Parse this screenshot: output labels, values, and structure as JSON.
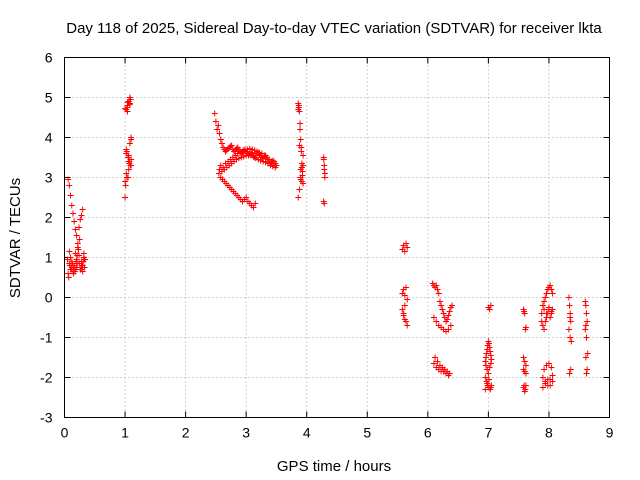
{
  "chart_data": {
    "type": "scatter",
    "title": "Day 118 of 2025, Sidereal Day-to-day VTEC variation (SDTVAR) for receiver lkta",
    "xlabel": "GPS time / hours",
    "ylabel": "SDTVAR / TECUs",
    "xlim": [
      0,
      9
    ],
    "ylim": [
      -3,
      6
    ],
    "xticks": [
      "0",
      "1",
      "2",
      "3",
      "4",
      "5",
      "6",
      "7",
      "8",
      "9"
    ],
    "yticks": [
      "-3",
      "-2",
      "-1",
      "0",
      "1",
      "2",
      "3",
      "4",
      "5",
      "6"
    ],
    "grid": true,
    "marker": "plus",
    "color": "#ff0000",
    "series": [
      {
        "name": "SDTVAR",
        "x": [
          0.05,
          0.06,
          0.07,
          0.08,
          0.09,
          0.1,
          0.11,
          0.12,
          0.13,
          0.14,
          0.15,
          0.16,
          0.17,
          0.18,
          0.19,
          0.2,
          0.21,
          0.22,
          0.23,
          0.24,
          0.25,
          0.26,
          0.27,
          0.28,
          0.29,
          0.3,
          0.31,
          0.32,
          0.33,
          0.34,
          0.06,
          0.08,
          0.1,
          0.12,
          0.14,
          0.16,
          0.18,
          0.2,
          0.22,
          0.24,
          0.26,
          0.28,
          0.3,
          0.32,
          0.33,
          0.1,
          0.15,
          0.2,
          0.25,
          0.3,
          0.08,
          0.12,
          0.18,
          0.22,
          0.28,
          1.0,
          1.01,
          1.02,
          1.03,
          1.04,
          1.05,
          1.06,
          1.07,
          1.08,
          1.09,
          1.1,
          1.0,
          1.02,
          1.04,
          1.06,
          1.08,
          1.1,
          1.02,
          1.04,
          1.06,
          1.08,
          1.1,
          1.0,
          1.02,
          1.04,
          1.06,
          1.08,
          1.1,
          1.05,
          1.09,
          1.03,
          1.07,
          2.48,
          2.5,
          2.52,
          2.54,
          2.56,
          2.58,
          2.6,
          2.62,
          2.64,
          2.66,
          2.68,
          2.7,
          2.72,
          2.74,
          2.76,
          2.78,
          2.8,
          2.82,
          2.84,
          2.86,
          2.88,
          2.9,
          2.92,
          2.94,
          2.96,
          2.98,
          3.0,
          3.02,
          3.04,
          3.06,
          3.08,
          3.1,
          3.12,
          3.14,
          3.16,
          3.18,
          3.2,
          3.22,
          3.24,
          3.26,
          3.28,
          3.3,
          3.32,
          3.34,
          3.36,
          3.38,
          3.4,
          3.42,
          3.44,
          3.46,
          3.48,
          3.5,
          2.56,
          2.6,
          2.64,
          2.68,
          2.72,
          2.76,
          2.8,
          2.84,
          2.88,
          2.92,
          2.96,
          3.0,
          3.04,
          3.08,
          3.12,
          3.16,
          3.2,
          3.24,
          3.28,
          3.32,
          3.36,
          3.4,
          3.44,
          3.48,
          2.55,
          2.58,
          2.61,
          2.64,
          2.67,
          2.7,
          2.73,
          2.76,
          2.79,
          2.82,
          2.85,
          2.88,
          2.91,
          2.94,
          2.97,
          3.0,
          3.03,
          3.06,
          3.09,
          3.12,
          3.15,
          2.58,
          2.62,
          2.66,
          2.7,
          2.74,
          2.78,
          2.82,
          2.86,
          2.9,
          2.94,
          2.98,
          3.02,
          3.06,
          3.1,
          3.14,
          3.18,
          3.22,
          3.26,
          3.3,
          3.34,
          3.38,
          3.42,
          3.46,
          3.86,
          3.87,
          3.88,
          3.89,
          3.9,
          3.91,
          3.92,
          3.93,
          3.94,
          3.86,
          3.88,
          3.9,
          3.92,
          3.94,
          3.87,
          3.89,
          3.91,
          3.93,
          3.88,
          3.9,
          3.92,
          3.94,
          3.86,
          3.9,
          4.28,
          4.29,
          4.3,
          4.28,
          4.29,
          4.3,
          4.28,
          4.29,
          5.58,
          5.6,
          5.62,
          5.64,
          5.66,
          5.58,
          5.6,
          5.62,
          5.64,
          5.66,
          5.58,
          5.6,
          5.62,
          5.64,
          5.66,
          5.6,
          5.62,
          6.08,
          6.1,
          6.12,
          6.14,
          6.16,
          6.18,
          6.2,
          6.22,
          6.24,
          6.26,
          6.28,
          6.3,
          6.32,
          6.34,
          6.36,
          6.38,
          6.4,
          6.1,
          6.14,
          6.18,
          6.22,
          6.26,
          6.3,
          6.34,
          6.38,
          6.12,
          6.16,
          6.2,
          6.24,
          6.28,
          6.32,
          6.36,
          6.1,
          6.14,
          6.18,
          6.22,
          6.26,
          6.3,
          6.34,
          6.95,
          6.96,
          6.97,
          6.98,
          6.99,
          7.0,
          7.01,
          7.02,
          7.03,
          7.04,
          7.05,
          6.95,
          6.97,
          6.99,
          7.01,
          7.03,
          7.05,
          6.96,
          6.98,
          7.0,
          7.02,
          7.04,
          6.95,
          6.98,
          7.01,
          7.04,
          7.0,
          7.02,
          7.04,
          7.58,
          7.59,
          7.6,
          7.61,
          7.62,
          7.58,
          7.6,
          7.62,
          7.58,
          7.6,
          7.62,
          7.59,
          7.61,
          7.58,
          7.6,
          7.62,
          7.88,
          7.9,
          7.92,
          7.94,
          7.96,
          7.98,
          8.0,
          8.02,
          8.04,
          8.06,
          7.88,
          7.9,
          7.92,
          7.94,
          7.96,
          7.98,
          8.0,
          8.02,
          8.04,
          8.06,
          7.9,
          7.94,
          7.98,
          8.02,
          8.06,
          7.92,
          7.96,
          8.0,
          8.04,
          7.9,
          7.94,
          7.98,
          8.02,
          8.06,
          7.92,
          7.96,
          8.0,
          8.04,
          8.33,
          8.34,
          8.35,
          8.36,
          8.33,
          8.35,
          8.37,
          8.34,
          8.36,
          8.35,
          8.6,
          8.61,
          8.62,
          8.63,
          8.6,
          8.62,
          8.64,
          8.61,
          8.63,
          8.62,
          8.61
        ],
        "y": [
          0.95,
          2.95,
          0.5,
          2.8,
          0.8,
          2.55,
          0.7,
          2.3,
          0.85,
          2.1,
          0.75,
          1.9,
          0.65,
          1.7,
          0.9,
          1.55,
          1.05,
          1.35,
          1.2,
          1.75,
          1.45,
          1.95,
          0.7,
          2.05,
          0.8,
          2.2,
          0.9,
          1.0,
          0.75,
          0.95,
          0.6,
          0.85,
          1.0,
          0.75,
          0.65,
          0.8,
          1.1,
          0.95,
          0.85,
          1.05,
          0.7,
          0.9,
          0.8,
          1.1,
          0.95,
          0.7,
          0.6,
          0.75,
          0.85,
          0.65,
          1.15,
          0.9,
          0.7,
          1.25,
          0.75,
          2.5,
          2.8,
          4.7,
          3.0,
          4.8,
          3.5,
          4.9,
          3.4,
          5.0,
          3.3,
          4.0,
          2.9,
          3.6,
          4.75,
          3.2,
          4.85,
          3.95,
          3.1,
          4.65,
          3.55,
          3.85,
          3.45,
          4.72,
          3.7,
          4.88,
          3.4,
          4.82,
          3.3,
          3.0,
          4.95,
          3.65,
          3.35,
          4.6,
          4.4,
          4.2,
          4.3,
          4.1,
          3.95,
          3.85,
          3.75,
          3.7,
          3.65,
          3.68,
          3.72,
          3.75,
          3.78,
          3.8,
          3.7,
          3.65,
          3.68,
          3.72,
          3.75,
          3.7,
          3.65,
          3.6,
          3.62,
          3.68,
          3.7,
          3.65,
          3.6,
          3.55,
          3.58,
          3.6,
          3.62,
          3.55,
          3.5,
          3.55,
          3.6,
          3.62,
          3.58,
          3.55,
          3.5,
          3.48,
          3.52,
          3.55,
          3.5,
          3.45,
          3.4,
          3.35,
          3.38,
          3.42,
          3.4,
          3.35,
          3.3,
          3.2,
          3.15,
          3.2,
          3.25,
          3.3,
          3.35,
          3.4,
          3.45,
          3.48,
          3.5,
          3.52,
          3.55,
          3.58,
          3.55,
          3.52,
          3.48,
          3.45,
          3.42,
          3.4,
          3.38,
          3.35,
          3.3,
          3.28,
          3.25,
          3.1,
          3.0,
          2.95,
          2.9,
          2.85,
          2.8,
          2.75,
          2.7,
          2.65,
          2.6,
          2.55,
          2.5,
          2.45,
          2.4,
          2.45,
          2.5,
          2.4,
          2.35,
          2.3,
          2.25,
          2.35,
          3.3,
          3.25,
          3.35,
          3.4,
          3.45,
          3.5,
          3.55,
          3.6,
          3.62,
          3.65,
          3.68,
          3.7,
          3.72,
          3.7,
          3.68,
          3.65,
          3.62,
          3.6,
          3.55,
          3.5,
          3.45,
          3.4,
          3.35,
          4.85,
          4.75,
          4.65,
          4.2,
          3.95,
          3.65,
          3.35,
          3.05,
          2.85,
          2.5,
          2.7,
          2.95,
          3.25,
          3.55,
          4.8,
          4.35,
          3.75,
          3.15,
          3.8,
          3.2,
          2.9,
          3.3,
          4.7,
          3.0,
          3.5,
          3.3,
          3.1,
          3.45,
          3.2,
          3.0,
          2.4,
          2.35,
          1.2,
          1.3,
          1.15,
          1.35,
          1.25,
          0.1,
          0.2,
          0.05,
          0.25,
          -0.05,
          -0.3,
          -0.45,
          -0.55,
          -0.6,
          -0.7,
          -0.4,
          -0.2,
          0.35,
          0.3,
          0.25,
          0.3,
          0.2,
          0.1,
          -0.1,
          -0.2,
          -0.3,
          -0.4,
          -0.5,
          -0.6,
          -0.55,
          -0.45,
          -0.35,
          -0.25,
          -0.2,
          -0.5,
          -0.6,
          -0.7,
          -0.75,
          -0.8,
          -0.85,
          -0.8,
          -0.7,
          -1.5,
          -1.6,
          -1.7,
          -1.75,
          -1.8,
          -1.85,
          -1.9,
          -1.65,
          -1.75,
          -1.8,
          -1.85,
          -1.85,
          -1.9,
          -1.95,
          -1.6,
          -1.5,
          -1.4,
          -1.3,
          -1.2,
          -1.1,
          -1.15,
          -1.25,
          -1.35,
          -1.45,
          -1.55,
          -2.0,
          -2.1,
          -2.2,
          -2.25,
          -2.3,
          -2.2,
          -1.7,
          -1.8,
          -1.9,
          -1.75,
          -1.65,
          -2.3,
          -2.15,
          -2.05,
          -2.25,
          -0.25,
          -0.3,
          -0.2,
          -0.3,
          -0.35,
          -0.4,
          -0.8,
          -0.75,
          -1.5,
          -1.6,
          -1.7,
          -1.8,
          -1.85,
          -1.9,
          -2.2,
          -2.3,
          -2.25,
          -2.35,
          -2.2,
          -0.4,
          -0.2,
          -0.1,
          0.0,
          0.1,
          0.2,
          0.25,
          0.3,
          0.2,
          0.1,
          -0.6,
          -0.7,
          -0.8,
          -0.6,
          -0.5,
          -0.4,
          -0.3,
          -0.5,
          -0.4,
          -0.3,
          -2.0,
          -2.1,
          -2.2,
          -2.05,
          -1.95,
          -1.8,
          -1.7,
          -1.65,
          -1.75,
          -2.25,
          -2.15,
          -2.05,
          -2.2,
          -2.1,
          -0.3,
          -0.4,
          -0.25,
          -0.35,
          0.0,
          -0.2,
          -0.4,
          -0.6,
          -0.8,
          -1.0,
          -1.1,
          -1.9,
          -1.8,
          -0.5,
          -0.1,
          -0.2,
          -0.4,
          -0.6,
          -0.8,
          -1.0,
          -1.4,
          -1.5,
          -1.8,
          -1.9,
          -0.7
        ]
      }
    ]
  }
}
